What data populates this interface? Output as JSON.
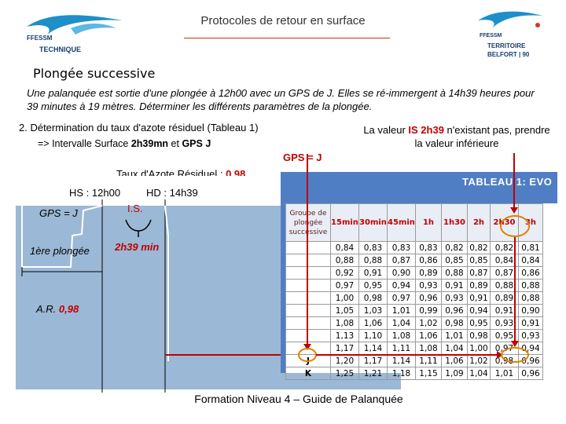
{
  "header": {
    "title": "Protocoles de retour en surface",
    "logo_left_text": [
      "FFESSM",
      "TECHNIQUE"
    ],
    "logo_right_text": [
      "FFESSM",
      "TERRITOIRE",
      "BELFORT | 90"
    ]
  },
  "section_title": "Plongée successive",
  "intro": "Une palanquée est sortie d'une plongée à 12h00 avec un GPS de J. Elles se ré-immergent à 14h39 heures pour 39 minutes à 19 mètres. Déterminer les différents paramètres de la plongée.",
  "step": "2.  Détermination du taux d'azote résiduel (Tableau 1)",
  "interval": {
    "prefix": "=> Intervalle Surface ",
    "value": "2h39mn",
    "mid": " et ",
    "gps": "GPS J"
  },
  "note": {
    "prefix": "La valeur ",
    "hl": "IS 2h39",
    "suffix": " n'existant pas, prendre la valeur inférieure"
  },
  "gps_label": "GPS = J",
  "residual": {
    "prefix": "Taux d'Azote Résiduel : ",
    "value": "0,98"
  },
  "diagram": {
    "hs": "HS : 12h00",
    "hd": "HD : 14h39",
    "gps": "GPS = J",
    "is": "I.S.",
    "first_dive": "1ère plongée",
    "interval": "2h39 min",
    "ar_prefix": "A.R. ",
    "ar_value": "0,98"
  },
  "table": {
    "title": "TABLEAU 1: EVO",
    "group_header": "Groupe de plongée successive",
    "columns": [
      "15min",
      "30min",
      "45min",
      "1h",
      "1h30",
      "2h",
      "2h30",
      "3h"
    ],
    "rows": [
      {
        "group": "",
        "values": [
          "0,84",
          "0,83",
          "0,83",
          "0,83",
          "0,82",
          "0,82",
          "0,82",
          "0,81"
        ]
      },
      {
        "group": "",
        "values": [
          "0,88",
          "0,88",
          "0,87",
          "0,86",
          "0,85",
          "0,85",
          "0,84",
          "0,84"
        ]
      },
      {
        "group": "",
        "values": [
          "0,92",
          "0,91",
          "0,90",
          "0,89",
          "0,88",
          "0,87",
          "0,87",
          "0,86"
        ]
      },
      {
        "group": "",
        "values": [
          "0,97",
          "0,95",
          "0,94",
          "0,93",
          "0,91",
          "0,89",
          "0,88",
          "0,88"
        ]
      },
      {
        "group": "",
        "values": [
          "1,00",
          "0,98",
          "0,97",
          "0,96",
          "0,93",
          "0,91",
          "0,89",
          "0,88"
        ]
      },
      {
        "group": "",
        "values": [
          "1,05",
          "1,03",
          "1,01",
          "0,99",
          "0,96",
          "0,94",
          "0,91",
          "0,90"
        ]
      },
      {
        "group": "",
        "values": [
          "1,08",
          "1,06",
          "1,04",
          "1,02",
          "0,98",
          "0,95",
          "0,93",
          "0,91"
        ]
      },
      {
        "group": "",
        "values": [
          "1,13",
          "1,10",
          "1,08",
          "1,06",
          "1,01",
          "0,98",
          "0,95",
          "0,93"
        ]
      },
      {
        "group": "",
        "values": [
          "1,17",
          "1,14",
          "1,11",
          "1,08",
          "1,04",
          "1,00",
          "0,97",
          "0,94"
        ]
      },
      {
        "group": "J",
        "values": [
          "1,20",
          "1,17",
          "1,14",
          "1,11",
          "1,06",
          "1,02",
          "0,98",
          "0,96"
        ]
      },
      {
        "group": "K",
        "values": [
          "1,25",
          "1,21",
          "1,18",
          "1,15",
          "1,09",
          "1,04",
          "1,01",
          "0,96"
        ]
      }
    ]
  },
  "footer": "Formation Niveau 4 – Guide de Palanquée",
  "colors": {
    "red": "#c00000",
    "blue_panel": "#9bb8d6",
    "table_header": "#4f7ec4"
  }
}
